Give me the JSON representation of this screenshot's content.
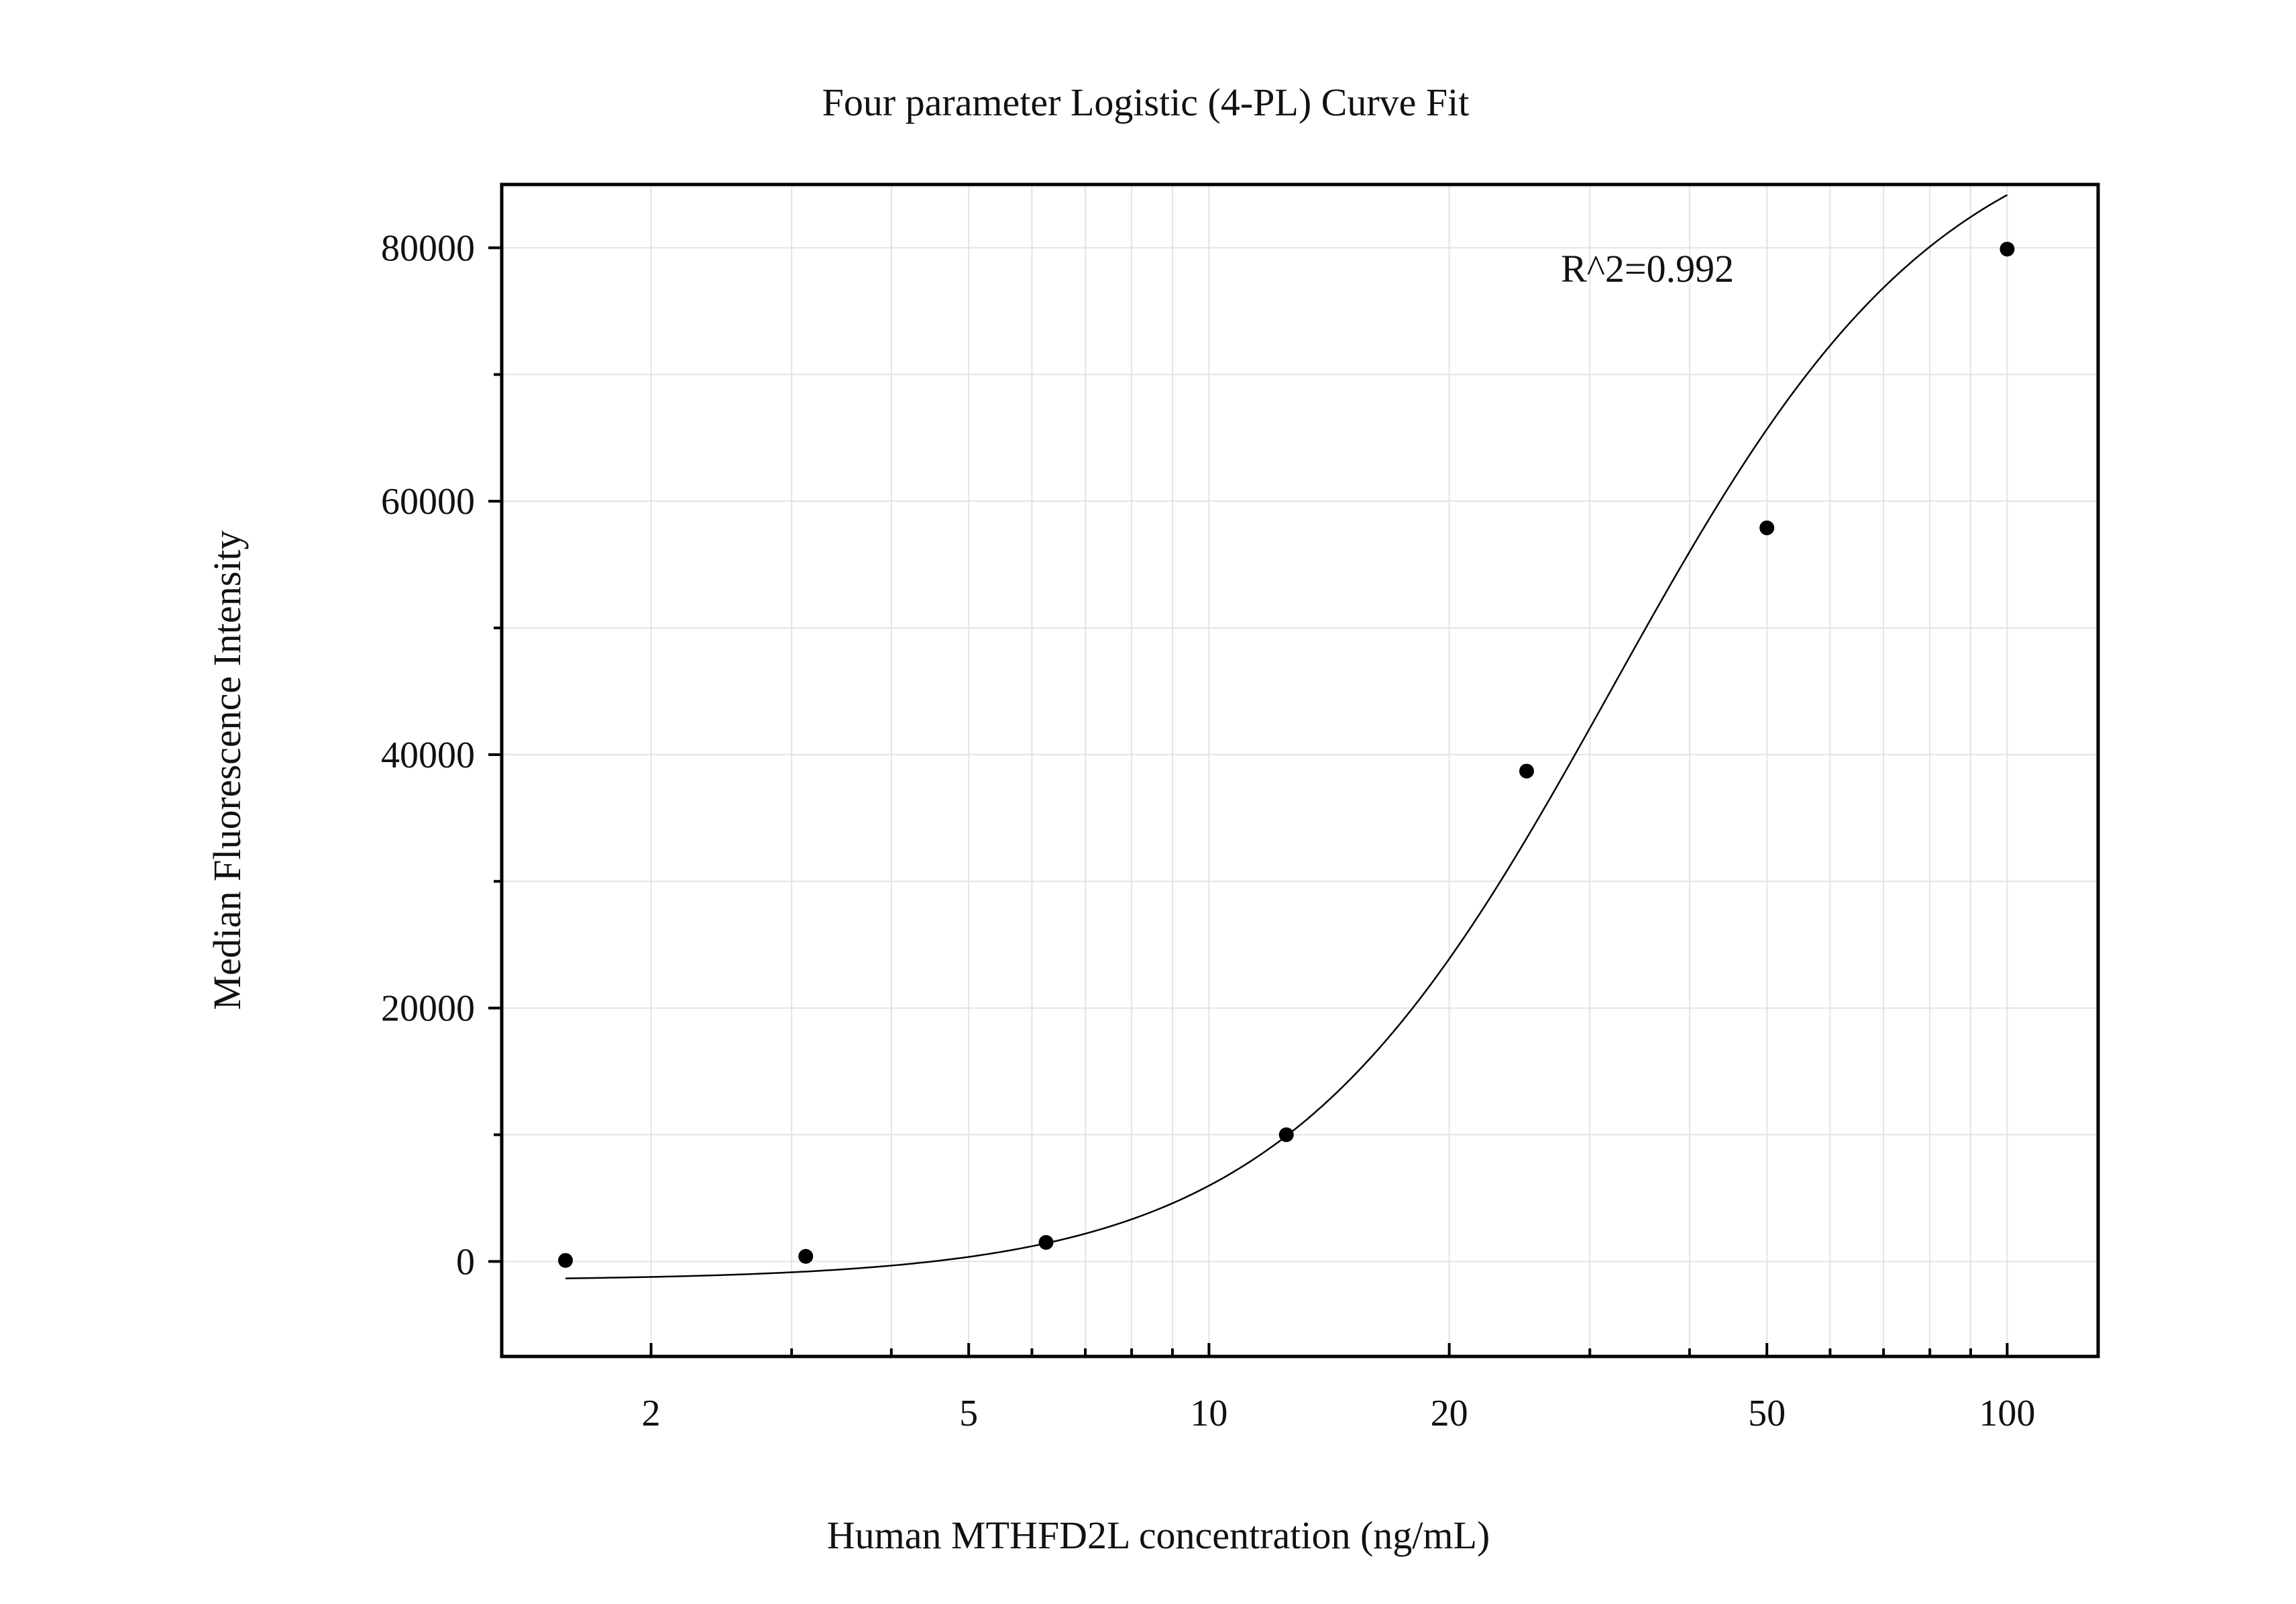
{
  "chart_data": {
    "type": "scatter",
    "title": "Four parameter Logistic (4-PL) Curve Fit",
    "xlabel": "Human MTHFD2L concentration (ng/mL)",
    "ylabel": "Median Fluorescence Intensity",
    "x_scale": "log",
    "xlim": [
      1.3,
      130
    ],
    "ylim": [
      -7500,
      85000
    ],
    "x_ticks": [
      2,
      5,
      10,
      20,
      50,
      100
    ],
    "x_tick_labels": [
      "2",
      "5",
      "10",
      "20",
      "50",
      "100"
    ],
    "y_ticks": [
      0,
      20000,
      40000,
      60000,
      80000
    ],
    "y_tick_labels": [
      "0",
      "20000",
      "40000",
      "60000",
      "80000"
    ],
    "y_minor_ticks": [
      10000,
      30000,
      50000,
      70000
    ],
    "grid": true,
    "annotation": "R^2=0.992",
    "colors": {
      "points": "#000000",
      "curve": "#000000",
      "grid": "#e3e3e3",
      "frame": "#000000"
    },
    "series": [
      {
        "x": [
          1.5625,
          3.125,
          6.25,
          12.5,
          25,
          50,
          100
        ],
        "y": [
          80,
          400,
          1500,
          10000,
          38700,
          57900,
          79900
        ]
      }
    ],
    "fit": {
      "model": "4PL",
      "bottom": -1500,
      "top": 92000,
      "ec50": 32,
      "hill": 2.1,
      "x_range": [
        1.5625,
        100
      ]
    }
  }
}
